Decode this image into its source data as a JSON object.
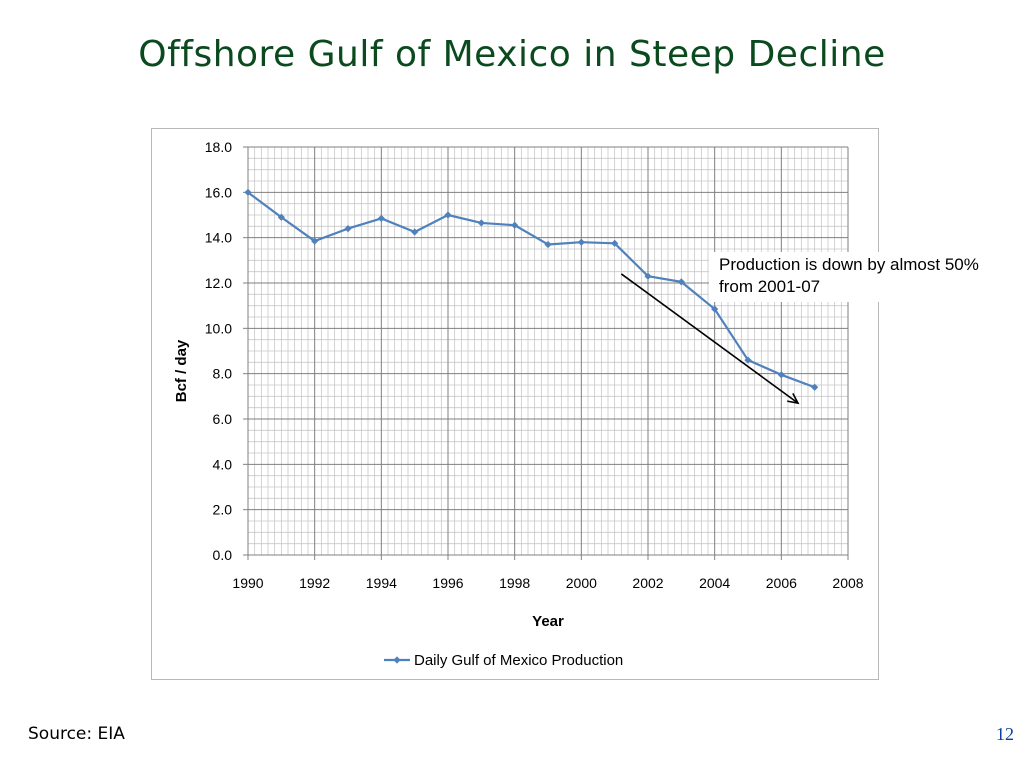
{
  "slide": {
    "title": "Offshore Gulf of Mexico in Steep Decline",
    "source": "Source: EIA",
    "page_number": "12"
  },
  "annotation": {
    "text": "Production is down by almost 50% from 2001-07"
  },
  "chart_data": {
    "type": "line",
    "title": "",
    "xlabel": "Year",
    "ylabel": "Bcf / day",
    "xlim": [
      1990,
      2008
    ],
    "ylim": [
      0,
      18
    ],
    "x_ticks": [
      1990,
      1992,
      1994,
      1996,
      1998,
      2000,
      2002,
      2004,
      2006,
      2008
    ],
    "y_ticks": [
      "0.0",
      "2.0",
      "4.0",
      "6.0",
      "8.0",
      "10.0",
      "12.0",
      "14.0",
      "16.0",
      "18.0"
    ],
    "grid": true,
    "legend_position": "bottom",
    "series": [
      {
        "name": "Daily Gulf of Mexico Production",
        "color": "#4f81bd",
        "x": [
          1990,
          1991,
          1992,
          1993,
          1994,
          1995,
          1996,
          1997,
          1998,
          1999,
          2000,
          2001,
          2002,
          2003,
          2004,
          2005,
          2006,
          2007
        ],
        "y": [
          16.0,
          14.9,
          13.85,
          14.4,
          14.85,
          14.25,
          15.0,
          14.65,
          14.55,
          13.7,
          13.8,
          13.75,
          12.3,
          12.05,
          10.85,
          8.6,
          7.95,
          7.4
        ]
      }
    ],
    "trend_arrow": {
      "from": [
        2001.2,
        12.4
      ],
      "to": [
        2006.5,
        6.7
      ],
      "color": "#000000"
    }
  }
}
